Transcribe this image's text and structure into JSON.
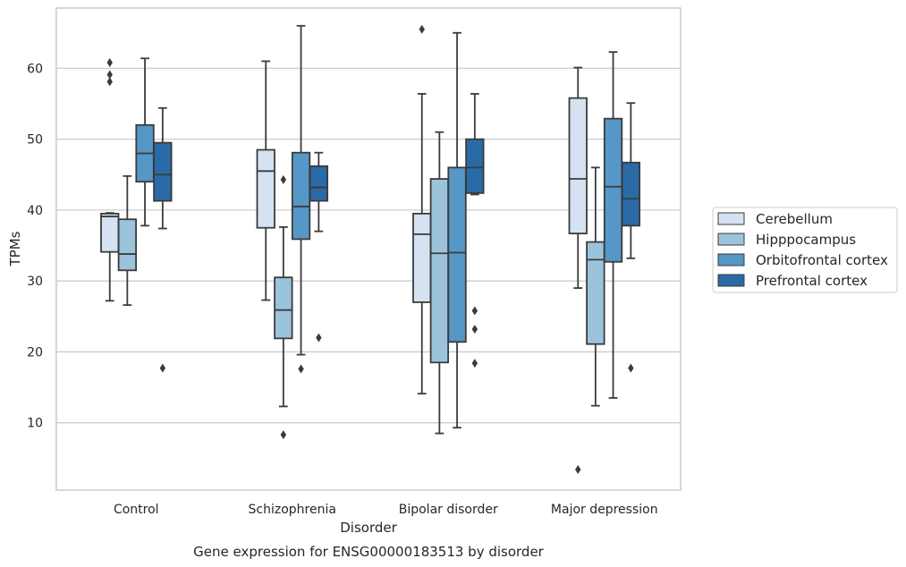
{
  "chart_data": {
    "type": "box",
    "title": "Gene expression for ENSG00000183513 by disorder",
    "xlabel": "Disorder",
    "ylabel": "TPMs",
    "ylim": [
      0.5,
      68.5
    ],
    "yticks": [
      10,
      20,
      30,
      40,
      50,
      60
    ],
    "grid": "horizontal",
    "legend_position": "right",
    "categories": [
      "Control",
      "Schizophrenia",
      "Bipolar disorder",
      "Major depression"
    ],
    "series": [
      {
        "name": "Cerebellum",
        "color": "#d4e2f1",
        "boxes": [
          {
            "whislo": 27.2,
            "q1": 34.1,
            "med": 39.1,
            "q3": 39.5,
            "whishi": 39.6,
            "fliers": [
              58.1,
              59.1,
              60.8
            ]
          },
          {
            "whislo": 27.3,
            "q1": 37.5,
            "med": 45.5,
            "q3": 48.5,
            "whishi": 61.0,
            "fliers": []
          },
          {
            "whislo": 14.1,
            "q1": 27.0,
            "med": 36.6,
            "q3": 39.5,
            "whishi": 56.4,
            "fliers": [
              65.5
            ]
          },
          {
            "whislo": 29.0,
            "q1": 36.7,
            "med": 44.4,
            "q3": 55.8,
            "whishi": 60.1,
            "fliers": [
              3.4
            ]
          }
        ]
      },
      {
        "name": "Hipppocampus",
        "color": "#9cc3dc",
        "boxes": [
          {
            "whislo": 26.6,
            "q1": 31.5,
            "med": 33.8,
            "q3": 38.7,
            "whishi": 44.8,
            "fliers": []
          },
          {
            "whislo": 12.3,
            "q1": 21.9,
            "med": 25.9,
            "q3": 30.5,
            "whishi": 37.6,
            "fliers": [
              8.3,
              44.3
            ]
          },
          {
            "whislo": 8.5,
            "q1": 18.5,
            "med": 33.9,
            "q3": 44.4,
            "whishi": 51.0,
            "fliers": []
          },
          {
            "whislo": 12.4,
            "q1": 21.1,
            "med": 33.0,
            "q3": 35.5,
            "whishi": 46.0,
            "fliers": []
          }
        ]
      },
      {
        "name": "Orbitofrontal cortex",
        "color": "#5597c6",
        "boxes": [
          {
            "whislo": 37.8,
            "q1": 44.0,
            "med": 48.0,
            "q3": 52.0,
            "whishi": 61.4,
            "fliers": []
          },
          {
            "whislo": 19.6,
            "q1": 35.9,
            "med": 40.5,
            "q3": 48.1,
            "whishi": 66.0,
            "fliers": [
              17.6
            ]
          },
          {
            "whislo": 9.3,
            "q1": 21.4,
            "med": 34.0,
            "q3": 46.0,
            "whishi": 65.0,
            "fliers": []
          },
          {
            "whislo": 13.5,
            "q1": 32.7,
            "med": 43.3,
            "q3": 52.9,
            "whishi": 62.3,
            "fliers": []
          }
        ]
      },
      {
        "name": "Prefrontal cortex",
        "color": "#2a6aa6",
        "boxes": [
          {
            "whislo": 37.4,
            "q1": 41.3,
            "med": 45.0,
            "q3": 49.5,
            "whishi": 54.4,
            "fliers": [
              17.7
            ]
          },
          {
            "whislo": 37.0,
            "q1": 41.3,
            "med": 43.2,
            "q3": 46.2,
            "whishi": 48.1,
            "fliers": [
              22.0
            ]
          },
          {
            "whislo": 42.2,
            "q1": 42.4,
            "med": 46.0,
            "q3": 50.0,
            "whishi": 56.4,
            "fliers": [
              18.4,
              23.2,
              25.8
            ]
          },
          {
            "whislo": 33.2,
            "q1": 37.8,
            "med": 41.6,
            "q3": 46.7,
            "whishi": 55.1,
            "fliers": [
              17.7
            ]
          }
        ]
      }
    ]
  }
}
